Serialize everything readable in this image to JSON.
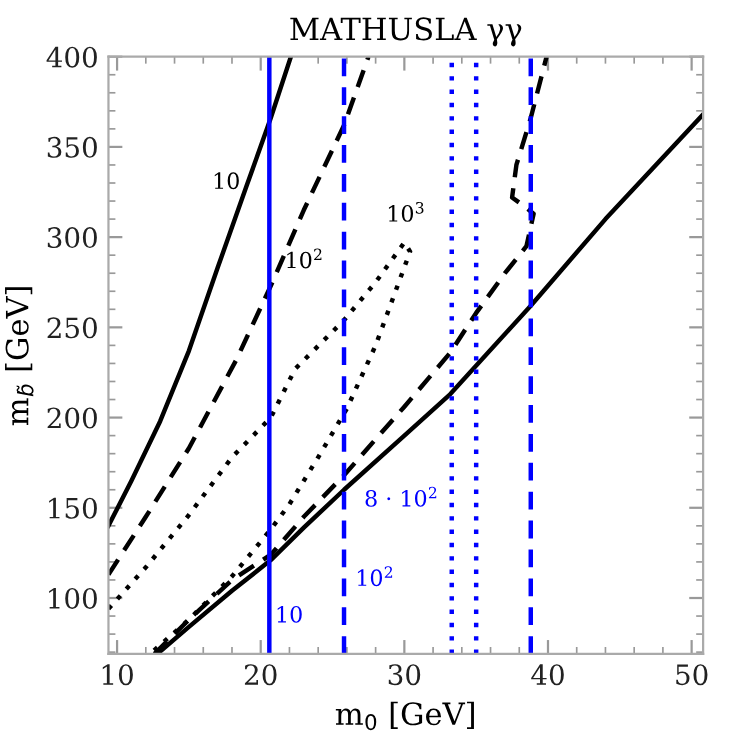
{
  "chart_data": {
    "type": "line",
    "title": "MATHUSLA γγ",
    "xlabel": "m$_{0}$ [GeV]",
    "ylabel": "m$_{b̃}$ [GeV]",
    "xlim": [
      9.4,
      50.8
    ],
    "ylim": [
      69,
      400
    ],
    "xticks": [
      10,
      20,
      30,
      40,
      50
    ],
    "yticks": [
      100,
      150,
      200,
      250,
      300,
      350,
      400
    ],
    "grid": false,
    "legend": false,
    "series": [
      {
        "name": "10",
        "color": "#000000",
        "line_style": "solid",
        "x": [
          9.4,
          11,
          13,
          15,
          17,
          19,
          20.7,
          22.1
        ],
        "values": [
          140,
          165,
          198,
          237,
          283,
          328,
          366,
          400
        ]
      },
      {
        "name": "10$^{2}$",
        "color": "#000000",
        "line_style": "dashed",
        "x": [
          9.4,
          12,
          15,
          18.3,
          20.7,
          23,
          25.8,
          27.5
        ],
        "values": [
          113,
          145,
          183,
          232,
          273,
          315,
          362,
          400
        ]
      },
      {
        "name": "10$^{3}$",
        "color": "#000000",
        "line_style": "dotted",
        "x": [
          9.4,
          12,
          15,
          18,
          20.7,
          22.4,
          25.8,
          28,
          30,
          30.4,
          28,
          26,
          24,
          22,
          20.7,
          18,
          15,
          12.3
        ],
        "values": [
          94,
          117,
          146,
          178,
          200,
          227,
          254,
          275,
          297,
          292,
          240,
          205,
          178,
          152,
          138,
          112,
          88,
          69
        ]
      },
      {
        "color": "#000000",
        "line_style": "dashed",
        "x": [
          12.6,
          15,
          18,
          20.7,
          23,
          25.8,
          28,
          30,
          33.2,
          35,
          37,
          38.5,
          39,
          38.2,
          37.5,
          37.8,
          38.8,
          39.9
        ],
        "values": [
          69,
          88,
          110,
          124,
          145,
          168,
          188,
          206,
          236,
          258,
          280,
          295,
          313,
          318,
          322,
          340,
          366,
          400
        ]
      },
      {
        "color": "#000000",
        "line_style": "solid",
        "x": [
          12.8,
          15,
          18,
          20.7,
          23,
          25.8,
          30,
          33.2,
          38.8,
          44,
          50.8
        ],
        "values": [
          69,
          84,
          104,
          121,
          139,
          160,
          190,
          213,
          262,
          310,
          368
        ]
      },
      {
        "name": "10",
        "color": "#0000ff",
        "line_style": "solid",
        "x": [
          20.6,
          20.6
        ],
        "values": [
          69,
          400
        ]
      },
      {
        "name": "10$^{2}$",
        "color": "#0000ff",
        "line_style": "dashed",
        "x": [
          25.8,
          25.8
        ],
        "values": [
          69,
          400
        ]
      },
      {
        "name": "8 · 10$^{2}$",
        "color": "#0000ff",
        "line_style": "dotted",
        "x": [
          33.3,
          33.3
        ],
        "values": [
          69,
          400
        ]
      },
      {
        "color": "#0000ff",
        "line_style": "dotted",
        "x": [
          35.0,
          35.0
        ],
        "values": [
          69,
          400
        ]
      },
      {
        "color": "#0000ff",
        "line_style": "dashed",
        "x": [
          38.8,
          38.8
        ],
        "values": [
          69,
          400
        ]
      }
    ]
  }
}
